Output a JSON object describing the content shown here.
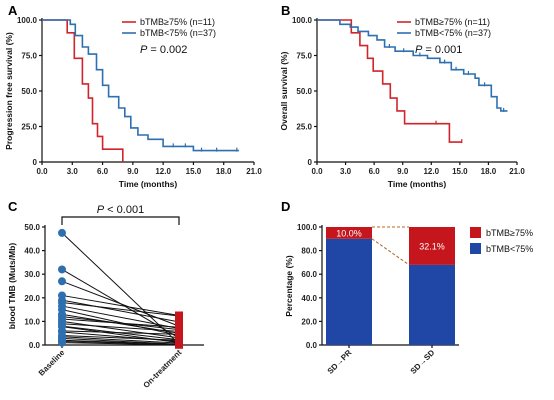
{
  "colors": {
    "red": "#d0242a",
    "blue": "#2e6fb0",
    "bar_blue": "#2047a5",
    "bar_red": "#c4161c",
    "dash": "#b0672a"
  },
  "chart_data": [
    {
      "id": "A",
      "type": "line",
      "panel_label": "A",
      "ylabel": "Progression free survival (%)",
      "xlabel": "Time (months)",
      "xlim": [
        0,
        21
      ],
      "ylim": [
        0,
        100
      ],
      "xticks": [
        "0.0",
        "3.0",
        "6.0",
        "9.0",
        "12.0",
        "15.0",
        "18.0",
        "21.0"
      ],
      "yticks": [
        "0",
        "25.0",
        "50.0",
        "75.0",
        "100.0"
      ],
      "pvalue": {
        "prefix": "P",
        "text": " = 0.002"
      },
      "series": [
        {
          "name": "bTMB≥75% (n=11)",
          "color": "red",
          "points": [
            [
              0,
              100
            ],
            [
              2.5,
              100
            ],
            [
              2.5,
              91
            ],
            [
              3.2,
              91
            ],
            [
              3.2,
              73
            ],
            [
              4.0,
              73
            ],
            [
              4.0,
              55
            ],
            [
              4.6,
              55
            ],
            [
              4.6,
              45
            ],
            [
              5.0,
              45
            ],
            [
              5.0,
              27
            ],
            [
              5.5,
              27
            ],
            [
              5.5,
              18
            ],
            [
              6.0,
              18
            ],
            [
              6.0,
              9
            ],
            [
              8.0,
              9
            ],
            [
              8.0,
              0
            ]
          ],
          "censors": []
        },
        {
          "name": "bTMB<75% (n=37)",
          "color": "blue",
          "points": [
            [
              0,
              100
            ],
            [
              2.8,
              100
            ],
            [
              2.8,
              97
            ],
            [
              3.3,
              97
            ],
            [
              3.3,
              89
            ],
            [
              4.0,
              89
            ],
            [
              4.0,
              81
            ],
            [
              4.6,
              81
            ],
            [
              4.6,
              76
            ],
            [
              5.4,
              76
            ],
            [
              5.4,
              65
            ],
            [
              6.0,
              65
            ],
            [
              6.0,
              54
            ],
            [
              6.6,
              54
            ],
            [
              6.6,
              46
            ],
            [
              7.6,
              46
            ],
            [
              7.6,
              38
            ],
            [
              8.2,
              38
            ],
            [
              8.2,
              32
            ],
            [
              8.8,
              32
            ],
            [
              8.8,
              24
            ],
            [
              9.5,
              24
            ],
            [
              9.5,
              19
            ],
            [
              10.5,
              19
            ],
            [
              10.5,
              16
            ],
            [
              12.0,
              16
            ],
            [
              12.0,
              11
            ],
            [
              15.0,
              11
            ],
            [
              15.0,
              8
            ],
            [
              19.5,
              8
            ]
          ],
          "censors": [
            [
              13.0,
              11
            ],
            [
              14.2,
              11
            ],
            [
              15.8,
              8
            ],
            [
              17.3,
              8
            ],
            [
              19.3,
              8
            ]
          ]
        }
      ]
    },
    {
      "id": "B",
      "type": "line",
      "panel_label": "B",
      "ylabel": "Overall survival (%)",
      "xlabel": "Time (months)",
      "xlim": [
        0,
        21
      ],
      "ylim": [
        0,
        100
      ],
      "xticks": [
        "0.0",
        "3.0",
        "6.0",
        "9.0",
        "12.0",
        "15.0",
        "18.0",
        "21.0"
      ],
      "yticks": [
        "0",
        "25.0",
        "50.0",
        "75.0",
        "100.0"
      ],
      "pvalue": {
        "prefix": "P",
        "text": " = 0.001"
      },
      "series": [
        {
          "name": "bTMB≥75% (n=11)",
          "color": "red",
          "points": [
            [
              0,
              100
            ],
            [
              3.6,
              100
            ],
            [
              3.6,
              91
            ],
            [
              4.5,
              91
            ],
            [
              4.5,
              82
            ],
            [
              5.3,
              82
            ],
            [
              5.3,
              73
            ],
            [
              5.9,
              73
            ],
            [
              5.9,
              64
            ],
            [
              6.9,
              64
            ],
            [
              6.9,
              55
            ],
            [
              7.7,
              55
            ],
            [
              7.7,
              45
            ],
            [
              8.4,
              45
            ],
            [
              8.4,
              36
            ],
            [
              9.2,
              36
            ],
            [
              9.2,
              27
            ],
            [
              13.9,
              27
            ],
            [
              13.9,
              14
            ],
            [
              15.2,
              14
            ]
          ],
          "censors": [
            [
              12.5,
              27
            ],
            [
              15.2,
              14
            ]
          ]
        },
        {
          "name": "bTMB<75% (n=37)",
          "color": "blue",
          "points": [
            [
              0,
              100
            ],
            [
              2.4,
              100
            ],
            [
              2.4,
              97
            ],
            [
              3.5,
              97
            ],
            [
              3.5,
              95
            ],
            [
              4.3,
              95
            ],
            [
              4.3,
              92
            ],
            [
              5.4,
              92
            ],
            [
              5.4,
              89
            ],
            [
              6.3,
              89
            ],
            [
              6.3,
              86
            ],
            [
              7.1,
              86
            ],
            [
              7.1,
              81
            ],
            [
              8.2,
              81
            ],
            [
              8.2,
              78
            ],
            [
              10.1,
              78
            ],
            [
              10.1,
              75
            ],
            [
              11.6,
              75
            ],
            [
              11.6,
              73
            ],
            [
              12.9,
              73
            ],
            [
              12.9,
              70
            ],
            [
              14.1,
              70
            ],
            [
              14.1,
              65
            ],
            [
              15.4,
              65
            ],
            [
              15.4,
              62
            ],
            [
              16.6,
              62
            ],
            [
              16.6,
              59
            ],
            [
              17.0,
              59
            ],
            [
              17.0,
              54
            ],
            [
              18.3,
              54
            ],
            [
              18.3,
              46
            ],
            [
              18.9,
              46
            ],
            [
              18.9,
              38
            ],
            [
              19.3,
              38
            ],
            [
              19.3,
              36
            ],
            [
              20.0,
              36
            ]
          ],
          "censors": [
            [
              7.6,
              81
            ],
            [
              9.1,
              78
            ],
            [
              10.8,
              75
            ],
            [
              13.4,
              70
            ],
            [
              14.6,
              65
            ],
            [
              15.9,
              62
            ],
            [
              17.6,
              54
            ],
            [
              19.6,
              36
            ]
          ]
        }
      ]
    },
    {
      "id": "C",
      "type": "scatter",
      "panel_label": "C",
      "ylabel": "blood TMB (Muts/Mb)",
      "ylim": [
        0,
        50
      ],
      "yticks": [
        "0.0",
        "10.0",
        "20.0",
        "30.0",
        "40.0",
        "50.0"
      ],
      "categories": [
        "Baseline",
        "On-treatment"
      ],
      "pvalue": {
        "prefix": "P",
        "text": " < 0.001"
      },
      "pairs": [
        [
          47.5,
          0.5
        ],
        [
          32,
          3
        ],
        [
          27,
          8
        ],
        [
          21,
          12.5
        ],
        [
          19,
          9.8
        ],
        [
          18,
          12.3
        ],
        [
          16.5,
          7
        ],
        [
          15,
          4
        ],
        [
          13,
          5
        ],
        [
          12,
          6.5
        ],
        [
          11,
          7.5
        ],
        [
          10,
          3
        ],
        [
          9,
          5.8
        ],
        [
          8,
          2.2
        ],
        [
          7.8,
          1
        ],
        [
          6,
          4.5
        ],
        [
          5.5,
          1.5
        ],
        [
          4,
          2
        ],
        [
          3.5,
          0.8
        ],
        [
          2.8,
          0.3
        ],
        [
          2,
          0.2
        ],
        [
          1.5,
          0.3
        ],
        [
          1,
          0.1
        ]
      ]
    },
    {
      "id": "D",
      "type": "bar",
      "panel_label": "D",
      "ylabel": "Percentage (%)",
      "ylim": [
        0,
        100
      ],
      "yticks": [
        "0.0",
        "20.0",
        "40.0",
        "60.0",
        "80.0",
        "100.0"
      ],
      "categories": [
        "SD→PR",
        "SD→SD"
      ],
      "series": [
        {
          "name": "bTMB<75%",
          "color": "bar_blue",
          "values": [
            90.0,
            67.9
          ]
        },
        {
          "name": "bTMB≥75%",
          "color": "bar_red",
          "values": [
            10.0,
            32.1
          ]
        }
      ],
      "data_labels": [
        "10.0%",
        "32.1%"
      ],
      "legend": "right"
    }
  ]
}
